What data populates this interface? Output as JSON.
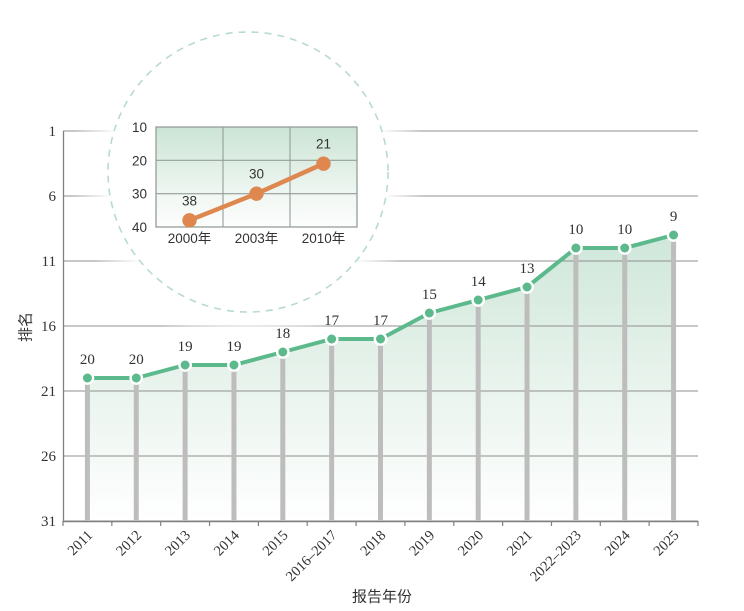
{
  "axis_titles": {
    "y": "排名",
    "x": "报告年份"
  },
  "colors": {
    "series_green": "#5cb98b",
    "marker_edge": "#ffffff",
    "stem_gray": "#bdbdbd",
    "gridline_gray": "#8f8f8f",
    "axis_gray": "#808080",
    "text": "#333333",
    "area_fill_top": "#cfe7da",
    "area_fill_mid": "#eaf4ee",
    "area_fill_bottom": "#ffffff",
    "dashed_circle_green": "#b7dcc8",
    "inset_orange": "#de8850",
    "inset_grid": "#949e98",
    "inset_bg_top": "#cbe4d5",
    "inset_bg_mid": "#f2f8f4",
    "inset_bg_bottom": "#fdfdfd"
  },
  "chart_data": [
    {
      "id": "main",
      "type": "line",
      "title": "",
      "xlabel": "报告年份",
      "ylabel": "排名",
      "categories": [
        "2011",
        "2012",
        "2013",
        "2014",
        "2015",
        "2016–2017",
        "2018",
        "2019",
        "2020",
        "2021",
        "2022–2023",
        "2024",
        "2025"
      ],
      "values": [
        20,
        20,
        19,
        19,
        18,
        17,
        17,
        15,
        14,
        13,
        10,
        10,
        9
      ],
      "data_labels": [
        "20",
        "20",
        "19",
        "19",
        "18",
        "17",
        "17",
        "15",
        "14",
        "13",
        "10",
        "10",
        "9"
      ],
      "y_ticks": [
        1,
        6,
        11,
        16,
        21,
        26,
        31
      ],
      "y_tick_labels": [
        "1",
        "6",
        "11",
        "16",
        "21",
        "26",
        "31"
      ],
      "ylim": [
        1,
        31
      ],
      "y_axis_inverted": true,
      "grid": "horizontal",
      "legend": "none",
      "marks": "lollipop-stems-with-area-fill"
    },
    {
      "id": "inset",
      "type": "line",
      "title": "",
      "categories": [
        "2000年",
        "2003年",
        "2010年"
      ],
      "values": [
        38,
        30,
        21
      ],
      "data_labels": [
        "38",
        "30",
        "21"
      ],
      "y_ticks": [
        10,
        20,
        30,
        40
      ],
      "y_tick_labels": [
        "10",
        "20",
        "30",
        "40"
      ],
      "ylim": [
        10,
        40
      ],
      "y_axis_inverted": true,
      "grid": "both",
      "legend": "none",
      "frame": "dashed-circle-callout"
    }
  ]
}
